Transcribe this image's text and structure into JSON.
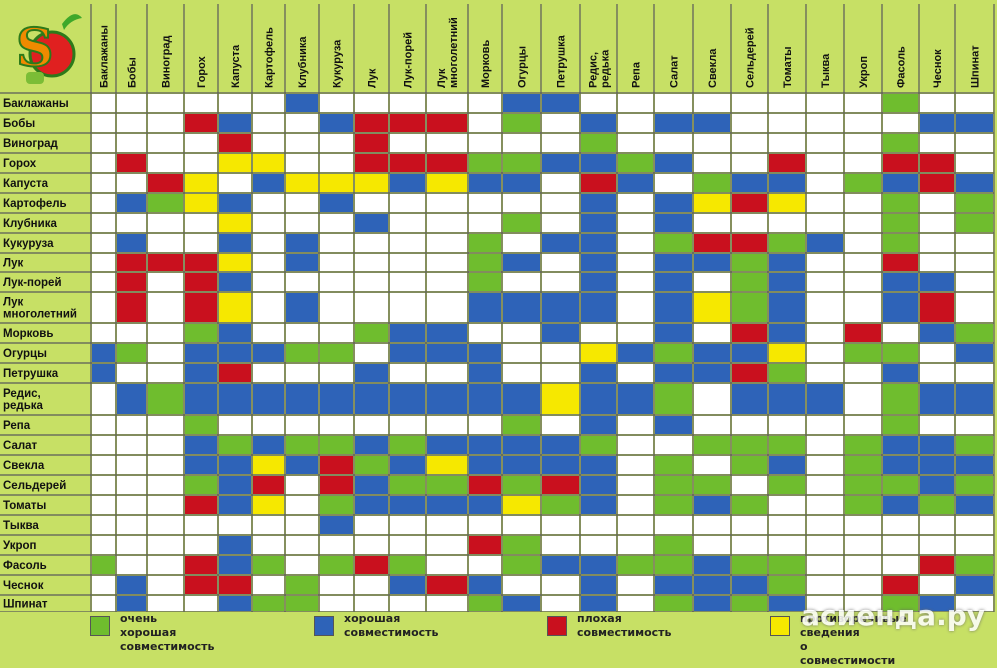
{
  "columns": [
    "Баклажаны",
    "Бобы",
    "Виноград",
    "Горох",
    "Капуста",
    "Картофель",
    "Клубника",
    "Кукуруза",
    "Лук",
    "Лук-порей",
    "Лук многолетний",
    "Морковь",
    "Огурцы",
    "Петрушка",
    "Редис, редька",
    "Репа",
    "Салат",
    "Свекла",
    "Сельдерей",
    "Томаты",
    "Тыква",
    "Укроп",
    "Фасоль",
    "Чеснок",
    "Шпинат"
  ],
  "rows": [
    "Баклажаны",
    "Бобы",
    "Виноград",
    "Горох",
    "Капуста",
    "Картофель",
    "Клубника",
    "Кукуруза",
    "Лук",
    "Лук-порей",
    "Лук многолетний",
    "Морковь",
    "Огурцы",
    "Петрушка",
    "Редис, редька",
    "Репа",
    "Салат",
    "Свекла",
    "Сельдерей",
    "Томаты",
    "Тыква",
    "Укроп",
    "Фасоль",
    "Чеснок",
    "Шпинат"
  ],
  "matrix": [
    "WWWWWWBWWWWWBBWWWWWWWWGWW",
    "WWWRBWWBRRRWGWBWBBWWWWWBB",
    "WWWWRWWWRWWWWWGWWWWWWWGWW",
    "WRWWYYWWRRRGGBBGBWWRWWRRW",
    "WWRYWBYYYBYBBWRBWGBBWGBRB",
    "WBGYBWWBWWWWWWBWBYRYWWGWG",
    "WWWWYWWWBWWWGWBWBWWWWWGWG",
    "WBWWBWBWWWWGWBBWGRRGBWGWW",
    "WRRRYWBWWWWGBWBWBBGBWWRWW",
    "WRWRBWWWWWWGWWBWBWGBWWBBW",
    "WRWRYWBWWWWBBBBWBYGBWWBRW",
    "WWWGBWWWGBBWWBWWBWRBWRWBG",
    "BGWBBBGGWBBBWWYBGBBYWGGWB",
    "BWWBRWWWBWWBWWBWBBRGWWBWW",
    "WBGBBBBBBBBBBYBBGWBBBWGBB",
    "WWWGWWWWWWWWGWBWBWWWWWGWW",
    "WWWBGBGGBGBBBBGWWGGGWGBBG",
    "WWWBBYBRGBYBBBBWGWGBWGBBB",
    "WWWGBRWRBGGRGRBWGGWGWGGBG",
    "WWWRBYWGBBBBYGBWGBGWWGBGB",
    "WWWWWWWBWWWWWWWWWWWWWWWWW",
    "WWWWBWWWWWWRGWWWGWWWWWWWW",
    "GWWRBGWGRGWWGBBGGBGGWWWRG",
    "WBWRRWGWWBRBWWBWBBBGWWRWB",
    "WBWWBGGWWWWGBWBWGBGBWWGBW"
  ],
  "legend": [
    {
      "key": "G",
      "color": "#6fbd2e",
      "text": "очень хорошая\nсовместимость"
    },
    {
      "key": "B",
      "color": "#2e63b8",
      "text": "хорошая\nсовместимость"
    },
    {
      "key": "R",
      "color": "#c9101e",
      "text": "плохая\nсовместимость"
    },
    {
      "key": "Y",
      "color": "#f6e800",
      "text": "противоречивые сведения\nо совместимости"
    }
  ],
  "colors": {
    "W": "#ffffff",
    "G": "#6fbd2e",
    "B": "#2e63b8",
    "R": "#c9101e",
    "Y": "#f6e800",
    "grid": "#5a5a5a",
    "bg": "#c7e065"
  },
  "watermark": "асиенда.ру"
}
